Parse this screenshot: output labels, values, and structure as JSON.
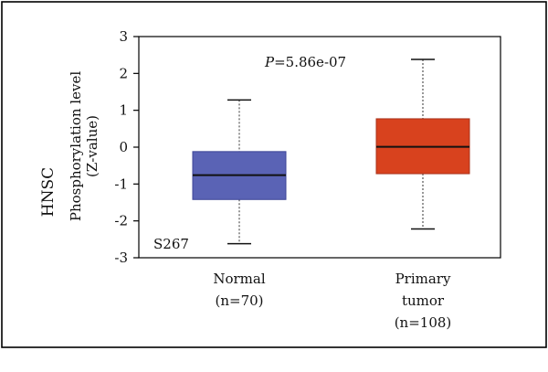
{
  "colors": {
    "normal_box": "#5a63b5",
    "normal_box_edge": "#3d4597",
    "tumor_box": "#d8421e",
    "tumor_box_edge": "#a8321a",
    "median": "#111111",
    "whisker": "#555555"
  },
  "chart_data": {
    "type": "box",
    "row_label": "HNSC",
    "ylabel_line1": "Phosphorylation level",
    "ylabel_line2": "(Z-value)",
    "ylim": [
      -3,
      3
    ],
    "yticks": [
      3,
      2,
      1,
      0,
      -1,
      -2,
      -3
    ],
    "ytick_labels": [
      "3",
      "2",
      "1",
      "0",
      "-1",
      "-2",
      "-3"
    ],
    "site_label": "S267",
    "pvalue": {
      "prefix": "P",
      "value": "=5.86e-07"
    },
    "groups": [
      {
        "label_lines": [
          "Normal",
          "(n=70)"
        ],
        "n": 70,
        "whisker_low": -2.62,
        "q1": -1.42,
        "median": -0.76,
        "q3": -0.12,
        "whisker_high": 1.28
      },
      {
        "label_lines": [
          "Primary",
          "tumor",
          "(n=108)"
        ],
        "n": 108,
        "whisker_low": -2.22,
        "q1": -0.72,
        "median": 0.01,
        "q3": 0.77,
        "whisker_high": 2.38
      }
    ]
  }
}
